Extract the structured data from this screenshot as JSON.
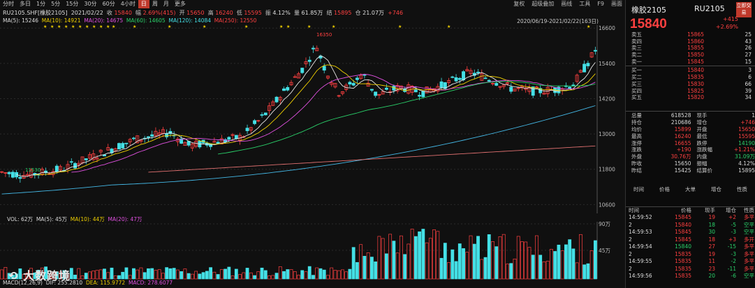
{
  "period_tabs": [
    "分时",
    "多日",
    "1分",
    "5分",
    "15分",
    "30分",
    "60分",
    "4小时",
    "日",
    "周",
    "月",
    "更多"
  ],
  "toolbar": [
    "复权",
    "超级叠加",
    "画线",
    "工具",
    "F9",
    "画面"
  ],
  "info": {
    "symbol": "RU2105.SHF[橡胶2105]",
    "date": "2021/02/22",
    "close_k": "收",
    "close_v": "15840",
    "amp_k": "幅",
    "amp_v": "2.69%(415)",
    "open_k": "开",
    "open_v": "15650",
    "high_k": "高",
    "high_v": "16240",
    "low_k": "低",
    "low_v": "15595",
    "zhen_k": "振",
    "zhen_v": "4.12%",
    "vol_k": "量",
    "vol_v": "61.85万",
    "settle_k": "结",
    "settle_v": "15895",
    "oi_k": "仓",
    "oi_v": "21.07万",
    "oi_chg": "+746"
  },
  "ma_line": {
    "ma5": "MA(5): 15246",
    "ma10": "MA(10): 14921",
    "ma20": "MA(20): 14675",
    "ma60": "MA(60): 14605",
    "ma120": "MA(120): 14084",
    "ma250": "MA(250): 12550"
  },
  "range": "2020/06/19-2021/02/22(163日)",
  "price_axis": [
    "16600",
    "15400",
    "14200",
    "13000",
    "11800",
    "10600"
  ],
  "annot_high": "16350",
  "annot_low": "11530",
  "vol_line": {
    "vol": "VOL: 62万",
    "ma5": "MA(5): 45万",
    "ma10": "MA(10): 44万",
    "ma20": "MA(20): 47万"
  },
  "vol_axis": [
    "90万",
    "45万"
  ],
  "macd_line": {
    "title": "MACD(12,26,9)",
    "dif": "DIF: 255.2810",
    "dea": "DEA: 115.9772",
    "macd": "MACD: 278.6077"
  },
  "logo": "大数跨境",
  "right": {
    "title": "橡胶2105",
    "code": "RU2105",
    "badge": "立即交易",
    "price": "15840",
    "chg": "+415",
    "pct": "+2.69%",
    "asks": [
      {
        "k": "卖五",
        "p": "15865",
        "v": "25"
      },
      {
        "k": "卖四",
        "p": "15860",
        "v": "43"
      },
      {
        "k": "卖三",
        "p": "15855",
        "v": "26"
      },
      {
        "k": "卖二",
        "p": "15850",
        "v": "27"
      },
      {
        "k": "卖一",
        "p": "15845",
        "v": "15"
      }
    ],
    "bids": [
      {
        "k": "买一",
        "p": "15840",
        "v": "3"
      },
      {
        "k": "买二",
        "p": "15835",
        "v": "6"
      },
      {
        "k": "买三",
        "p": "15830",
        "v": "66"
      },
      {
        "k": "买四",
        "p": "15825",
        "v": "39"
      },
      {
        "k": "买五",
        "p": "15820",
        "v": "34"
      }
    ],
    "stats": [
      {
        "k1": "总量",
        "v1": "618528",
        "k2": "现手",
        "v2": "1"
      },
      {
        "k1": "持仓",
        "v1": "210686",
        "k2": "增仓",
        "v2": "+746"
      },
      {
        "k1": "均价",
        "v1": "15899",
        "k2": "开盘",
        "v2": "15650"
      },
      {
        "k1": "最高",
        "v1": "16240",
        "k2": "最低",
        "v2": "15595"
      },
      {
        "k1": "涨停",
        "v1": "16655",
        "k2": "跌停",
        "v2": "14190"
      },
      {
        "k1": "涨跌",
        "v1": "+190",
        "k2": "涨跌幅",
        "v2": "+1.21%"
      },
      {
        "k1": "外盘",
        "v1": "30.76万",
        "k2": "内盘",
        "v2": "31.09万"
      },
      {
        "k1": "昨收",
        "v1": "15650",
        "k2": "振幅",
        "v2": "4.12%"
      },
      {
        "k1": "昨结",
        "v1": "15425",
        "k2": "结算价",
        "v2": "15895"
      }
    ],
    "tabs": [
      "时间",
      "价格",
      "大单",
      "增仓",
      "性质"
    ],
    "tick_head": [
      "时间",
      "价格",
      "现手",
      "增仓",
      "性质"
    ],
    "ticks": [
      {
        "t": "14:59:52",
        "p": "15845",
        "v": "19",
        "c": "+2",
        "n": "多平"
      },
      {
        "t": "2",
        "p": "15840",
        "v": "18",
        "c": "-5",
        "n": "空平"
      },
      {
        "t": "14:59:53",
        "p": "15845",
        "v": "30",
        "c": "-3",
        "n": "空平"
      },
      {
        "t": "2",
        "p": "15845",
        "v": "18",
        "c": "+3",
        "n": "多开"
      },
      {
        "t": "14:59:54",
        "p": "15840",
        "v": "27",
        "c": "-15",
        "n": "多平"
      },
      {
        "t": "2",
        "p": "15835",
        "v": "19",
        "c": "-3",
        "n": "多平"
      },
      {
        "t": "14:59:55",
        "p": "15835",
        "v": "11",
        "c": "-2",
        "n": "多平"
      },
      {
        "t": "2",
        "p": "15835",
        "v": "23",
        "c": "-11",
        "n": "多平"
      },
      {
        "t": "14:59:56",
        "p": "15835",
        "v": "20",
        "c": "-6",
        "n": "空平"
      }
    ]
  },
  "colors": {
    "up": "#ff4040",
    "down": "#44e0e6",
    "ma5": "#e8e8e8",
    "ma10": "#f0d000",
    "ma20": "#e050e0",
    "ma60": "#2ad16a",
    "ma120": "#44b8e6",
    "ma250": "#e07070"
  }
}
